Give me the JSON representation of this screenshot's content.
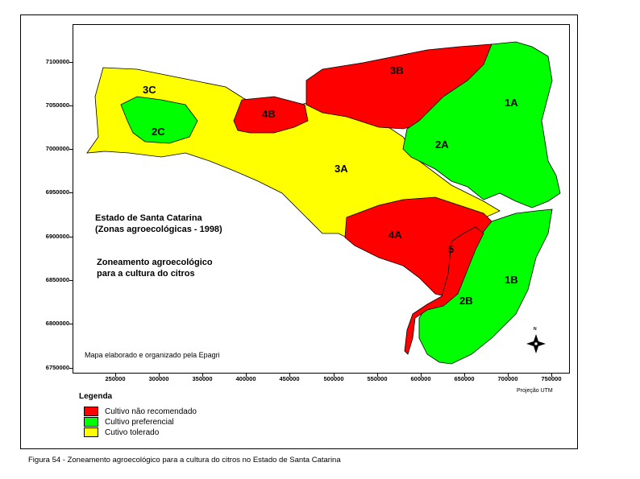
{
  "map": {
    "title_line1": "Estado de Santa Catarina",
    "title_line2": "(Zonas agroecológicas - 1998)",
    "subtitle_line1": "Zoneamento agroecológico",
    "subtitle_line2": "para a cultura do citros",
    "credit": "Mapa elaborado e organizado pela Epagri",
    "projection": "Projeção UTM",
    "north_label": "N",
    "y_ticks": [
      "7100000",
      "7050000",
      "7000000",
      "6950000",
      "6900000",
      "6850000",
      "6800000",
      "6750000"
    ],
    "x_ticks": [
      "250000",
      "300000",
      "350000",
      "400000",
      "450000",
      "500000",
      "550000",
      "600000",
      "650000",
      "700000",
      "750000"
    ],
    "zones": [
      {
        "id": "1A",
        "category": "preferencial"
      },
      {
        "id": "1B",
        "category": "preferencial"
      },
      {
        "id": "2A",
        "category": "preferencial"
      },
      {
        "id": "2B",
        "category": "preferencial"
      },
      {
        "id": "2C",
        "category": "preferencial"
      },
      {
        "id": "3A",
        "category": "tolerado"
      },
      {
        "id": "3B",
        "category": "nao_recomendado"
      },
      {
        "id": "3C",
        "category": "tolerado"
      },
      {
        "id": "4A",
        "category": "nao_recomendado"
      },
      {
        "id": "4B",
        "category": "nao_recomendado"
      },
      {
        "id": "5",
        "category": "nao_recomendado"
      }
    ]
  },
  "legend": {
    "title": "Legenda",
    "items": [
      {
        "label": "Cultivo não recomendado",
        "color": "#ff0000"
      },
      {
        "label": "Cultivo preferencial",
        "color": "#00ff00"
      },
      {
        "label": "Cutivo tolerado",
        "color": "#ffff00"
      }
    ]
  },
  "colors": {
    "red": "#ff0000",
    "green": "#00ff00",
    "yellow": "#ffff00"
  },
  "caption": {
    "prefix": "Figura 54 -",
    "text": " Zoneamento agroecológico para a cultura do citros no Estado de Santa Catarina"
  }
}
